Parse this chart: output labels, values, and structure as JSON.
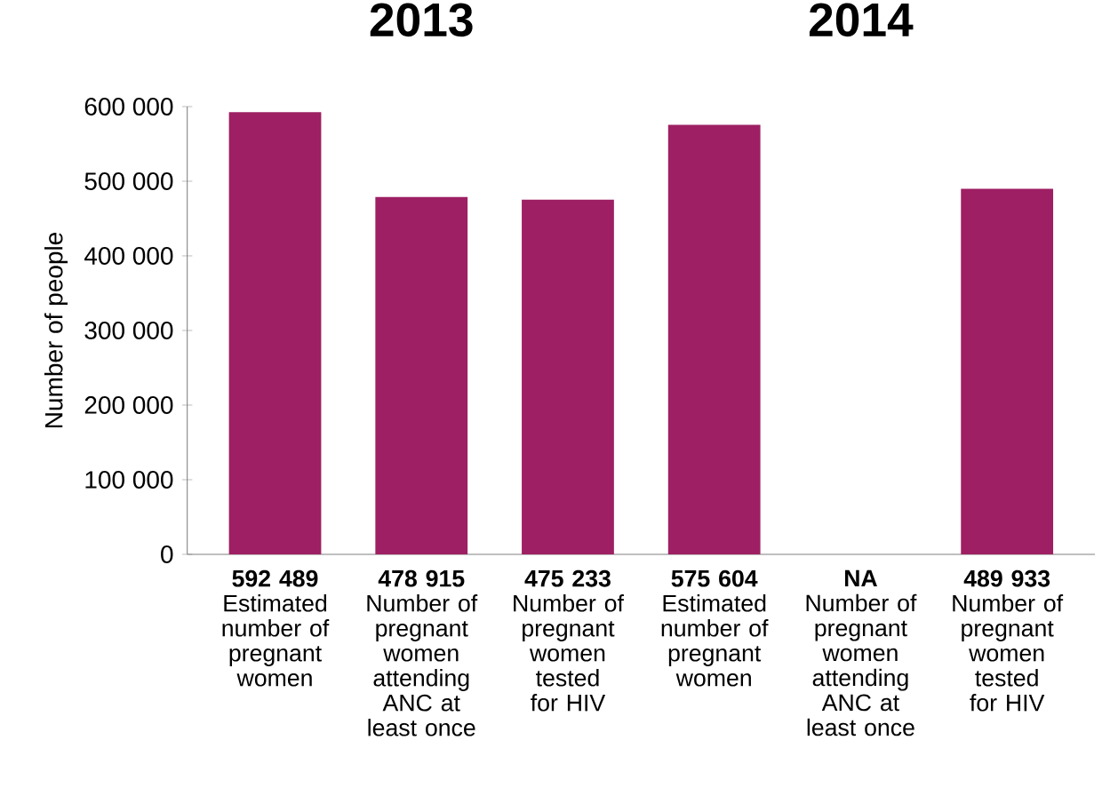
{
  "chart_data": {
    "type": "bar",
    "ylabel": "Number of people",
    "annotations": [
      "2013",
      "2014"
    ],
    "categories": [
      "Estimated number of pregnant women",
      "Number of pregnant women attending ANC at least once",
      "Number of pregnant women tested for HIV",
      "Estimated number of pregnant women",
      "Number of pregnant women attending ANC at least once",
      "Number of pregnant women tested for HIV"
    ],
    "values": [
      592489,
      478915,
      475233,
      575604,
      null,
      489933
    ],
    "value_labels": [
      "592 489",
      "478 915",
      "475 233",
      "575 604",
      "NA",
      "489 933"
    ],
    "color": "#9e1f63",
    "ylim": [
      0,
      600000
    ],
    "yticks": [
      {
        "value": 0,
        "label": "0"
      },
      {
        "value": 100000,
        "label": "100 000"
      },
      {
        "value": 200000,
        "label": "200 000"
      },
      {
        "value": 300000,
        "label": "300 000"
      },
      {
        "value": 400000,
        "label": "400 000"
      },
      {
        "value": 500000,
        "label": "500 000"
      },
      {
        "value": 600000,
        "label": "600 000"
      }
    ],
    "grid": false
  }
}
